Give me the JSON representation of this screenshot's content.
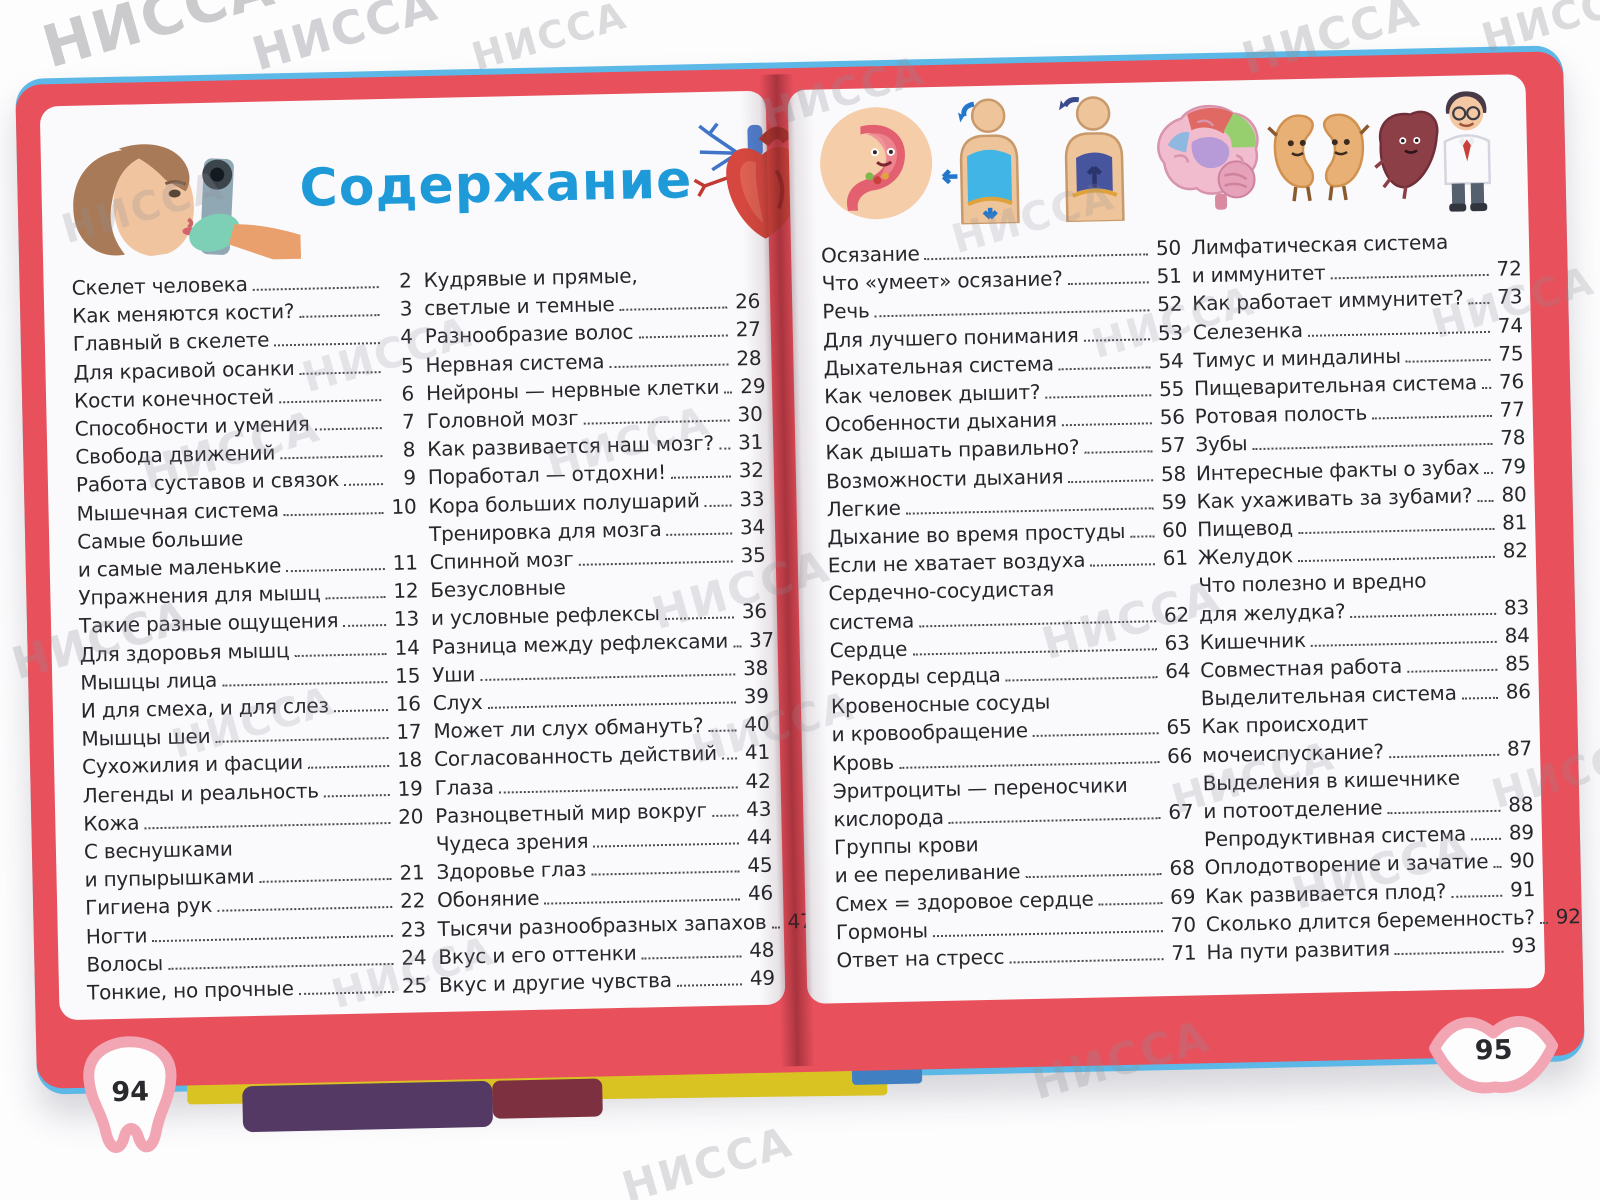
{
  "title": "Содержание",
  "watermark": {
    "text": "НИССА"
  },
  "colors": {
    "accent_blue": "#1f9ad8",
    "page_border_red": "#e8505c",
    "cover_edge_blue": "#5cb8e6",
    "badge_pink": "#f2a6b4",
    "text_dark": "#26262b",
    "watermark_gray": "#8f8f96"
  },
  "illustrations": {
    "left_page": [
      "eye-exam-illustration",
      "heart-illustration"
    ],
    "right_page": [
      "stomach-character-illustration",
      "breathing-inhale-illustration",
      "breathing-exhale-illustration",
      "brain-illustration",
      "kidneys-characters-illustration",
      "liver-and-doctor-illustration"
    ]
  },
  "left_page": {
    "page_number": "94",
    "column1": [
      {
        "lines": [
          "Скелет человека"
        ],
        "page": "2"
      },
      {
        "lines": [
          "Как меняются кости?"
        ],
        "page": "3"
      },
      {
        "lines": [
          "Главный в скелете"
        ],
        "page": "4"
      },
      {
        "lines": [
          "Для красивой осанки"
        ],
        "page": "5"
      },
      {
        "lines": [
          "Кости конечностей"
        ],
        "page": "6"
      },
      {
        "lines": [
          "Способности и умения"
        ],
        "page": "7"
      },
      {
        "lines": [
          "Свобода движений"
        ],
        "page": "8"
      },
      {
        "lines": [
          "Работа суставов и связок"
        ],
        "page": "9"
      },
      {
        "lines": [
          "Мышечная система"
        ],
        "page": "10"
      },
      {
        "lines": [
          "Самые большие",
          "и самые маленькие"
        ],
        "page": "11"
      },
      {
        "lines": [
          "Упражнения для мышц"
        ],
        "page": "12"
      },
      {
        "lines": [
          "Такие разные ощущения"
        ],
        "page": "13"
      },
      {
        "lines": [
          "Для здоровья мышц"
        ],
        "page": "14"
      },
      {
        "lines": [
          "Мышцы лица"
        ],
        "page": "15"
      },
      {
        "lines": [
          "И для смеха, и для слез"
        ],
        "page": "16"
      },
      {
        "lines": [
          "Мышцы шеи"
        ],
        "page": "17"
      },
      {
        "lines": [
          "Сухожилия и фасции"
        ],
        "page": "18"
      },
      {
        "lines": [
          "Легенды и реальность"
        ],
        "page": "19"
      },
      {
        "lines": [
          "Кожа"
        ],
        "page": "20"
      },
      {
        "lines": [
          "С веснушками",
          "и пупырышками"
        ],
        "page": "21"
      },
      {
        "lines": [
          "Гигиена рук"
        ],
        "page": "22"
      },
      {
        "lines": [
          "Ногти"
        ],
        "page": "23"
      },
      {
        "lines": [
          "Волосы"
        ],
        "page": "24"
      },
      {
        "lines": [
          "Тонкие, но прочные"
        ],
        "page": "25"
      }
    ],
    "column2": [
      {
        "lines": [
          "Кудрявые и прямые,",
          "светлые и темные"
        ],
        "page": "26"
      },
      {
        "lines": [
          "Разнообразие волос"
        ],
        "page": "27"
      },
      {
        "lines": [
          "Нервная система"
        ],
        "page": "28"
      },
      {
        "lines": [
          "Нейроны — нервные клетки"
        ],
        "page": "29"
      },
      {
        "lines": [
          "Головной мозг"
        ],
        "page": "30"
      },
      {
        "lines": [
          "Как развивается наш мозг?"
        ],
        "page": "31"
      },
      {
        "lines": [
          "Поработал — отдохни!"
        ],
        "page": "32"
      },
      {
        "lines": [
          "Кора больших полушарий"
        ],
        "page": "33"
      },
      {
        "lines": [
          "Тренировка для мозга"
        ],
        "page": "34"
      },
      {
        "lines": [
          "Спинной мозг"
        ],
        "page": "35"
      },
      {
        "lines": [
          "Безусловные",
          "и условные рефлексы"
        ],
        "page": "36"
      },
      {
        "lines": [
          "Разница между рефлексами"
        ],
        "page": "37"
      },
      {
        "lines": [
          "Уши"
        ],
        "page": "38"
      },
      {
        "lines": [
          "Слух"
        ],
        "page": "39"
      },
      {
        "lines": [
          "Может ли слух обмануть?"
        ],
        "page": "40"
      },
      {
        "lines": [
          "Согласованность действий"
        ],
        "page": "41"
      },
      {
        "lines": [
          "Глаза"
        ],
        "page": "42"
      },
      {
        "lines": [
          "Разноцветный мир вокруг"
        ],
        "page": "43"
      },
      {
        "lines": [
          "Чудеса зрения"
        ],
        "page": "44"
      },
      {
        "lines": [
          "Здоровье глаз"
        ],
        "page": "45"
      },
      {
        "lines": [
          "Обоняние"
        ],
        "page": "46"
      },
      {
        "lines": [
          "Тысячи разнообразных запахов"
        ],
        "page": "47"
      },
      {
        "lines": [
          "Вкус и его оттенки"
        ],
        "page": "48"
      },
      {
        "lines": [
          "Вкус и другие чувства"
        ],
        "page": "49"
      }
    ]
  },
  "right_page": {
    "page_number": "95",
    "column1": [
      {
        "lines": [
          "Осязание"
        ],
        "page": "50"
      },
      {
        "lines": [
          "Что «умеет» осязание?"
        ],
        "page": "51"
      },
      {
        "lines": [
          "Речь"
        ],
        "page": "52"
      },
      {
        "lines": [
          "Для лучшего понимания"
        ],
        "page": "53"
      },
      {
        "lines": [
          "Дыхательная система"
        ],
        "page": "54"
      },
      {
        "lines": [
          "Как человек дышит?"
        ],
        "page": "55"
      },
      {
        "lines": [
          "Особенности дыхания"
        ],
        "page": "56"
      },
      {
        "lines": [
          "Как дышать правильно?"
        ],
        "page": "57"
      },
      {
        "lines": [
          "Возможности дыхания"
        ],
        "page": "58"
      },
      {
        "lines": [
          "Легкие"
        ],
        "page": "59"
      },
      {
        "lines": [
          "Дыхание во время простуды"
        ],
        "page": "60"
      },
      {
        "lines": [
          "Если не хватает воздуха"
        ],
        "page": "61"
      },
      {
        "lines": [
          "Сердечно-сосудистая",
          "система"
        ],
        "page": "62"
      },
      {
        "lines": [
          "Сердце"
        ],
        "page": "63"
      },
      {
        "lines": [
          "Рекорды сердца"
        ],
        "page": "64"
      },
      {
        "lines": [
          "Кровеносные сосуды",
          "и кровообращение"
        ],
        "page": "65"
      },
      {
        "lines": [
          "Кровь"
        ],
        "page": "66"
      },
      {
        "lines": [
          "Эритроциты — переносчики",
          "кислорода"
        ],
        "page": "67"
      },
      {
        "lines": [
          "Группы крови",
          "и ее переливание"
        ],
        "page": "68"
      },
      {
        "lines": [
          "Смех = здоровое сердце"
        ],
        "page": "69"
      },
      {
        "lines": [
          "Гормоны"
        ],
        "page": "70"
      },
      {
        "lines": [
          "Ответ на стресс"
        ],
        "page": "71"
      }
    ],
    "column2": [
      {
        "lines": [
          "Лимфатическая система",
          "и иммунитет"
        ],
        "page": "72"
      },
      {
        "lines": [
          "Как работает иммунитет?"
        ],
        "page": "73"
      },
      {
        "lines": [
          "Селезенка"
        ],
        "page": "74"
      },
      {
        "lines": [
          "Тимус и миндалины"
        ],
        "page": "75"
      },
      {
        "lines": [
          "Пищеварительная система"
        ],
        "page": "76"
      },
      {
        "lines": [
          "Ротовая полость"
        ],
        "page": "77"
      },
      {
        "lines": [
          "Зубы"
        ],
        "page": "78"
      },
      {
        "lines": [
          "Интересные факты о зубах"
        ],
        "page": "79"
      },
      {
        "lines": [
          "Как ухаживать за зубами?"
        ],
        "page": "80"
      },
      {
        "lines": [
          "Пищевод"
        ],
        "page": "81"
      },
      {
        "lines": [
          "Желудок"
        ],
        "page": "82"
      },
      {
        "lines": [
          "Что полезно и вредно",
          "для желудка?"
        ],
        "page": "83"
      },
      {
        "lines": [
          "Кишечник"
        ],
        "page": "84"
      },
      {
        "lines": [
          "Совместная работа"
        ],
        "page": "85"
      },
      {
        "lines": [
          "Выделительная система"
        ],
        "page": "86"
      },
      {
        "lines": [
          "Как происходит",
          "мочеиспускание?"
        ],
        "page": "87"
      },
      {
        "lines": [
          "Выделения в кишечнике",
          "и потоотделение"
        ],
        "page": "88"
      },
      {
        "lines": [
          "Репродуктивная система"
        ],
        "page": "89"
      },
      {
        "lines": [
          "Оплодотворение и зачатие"
        ],
        "page": "90"
      },
      {
        "lines": [
          "Как развивается плод?"
        ],
        "page": "91"
      },
      {
        "lines": [
          "Сколько длится беременность?"
        ],
        "page": "92"
      },
      {
        "lines": [
          "На пути развития"
        ],
        "page": "93"
      }
    ]
  }
}
